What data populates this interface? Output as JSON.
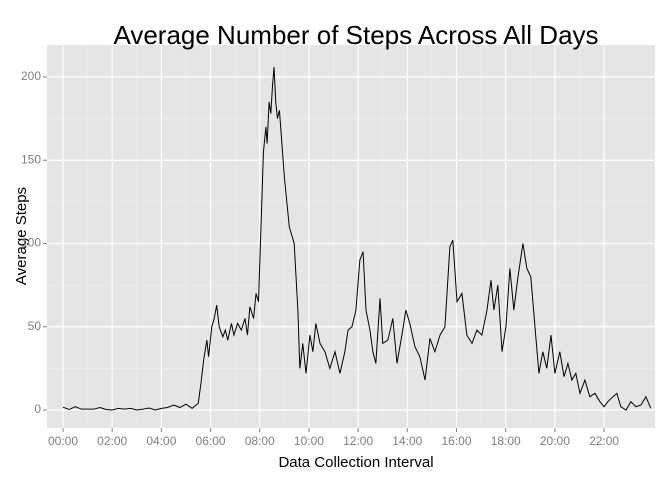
{
  "chart_data": {
    "type": "line",
    "title": "Average Number of Steps Across All Days",
    "x_label": "Data Collection Interval",
    "y_label": "Average Steps",
    "x": [
      0,
      0.25,
      0.5,
      0.75,
      1,
      1.25,
      1.5,
      1.75,
      2,
      2.25,
      2.5,
      2.75,
      3,
      3.25,
      3.5,
      3.75,
      4,
      4.25,
      4.5,
      4.75,
      5,
      5.25,
      5.5,
      5.6,
      5.72,
      5.85,
      5.92,
      6.05,
      6.15,
      6.25,
      6.35,
      6.5,
      6.6,
      6.7,
      6.85,
      6.95,
      7.1,
      7.25,
      7.4,
      7.5,
      7.6,
      7.75,
      7.85,
      7.95,
      8.05,
      8.15,
      8.25,
      8.3,
      8.38,
      8.45,
      8.52,
      8.58,
      8.65,
      8.72,
      8.8,
      9.0,
      9.2,
      9.4,
      9.55,
      9.63,
      9.75,
      9.88,
      10.04,
      10.16,
      10.28,
      10.45,
      10.65,
      10.85,
      11.06,
      11.26,
      11.46,
      11.59,
      11.75,
      11.91,
      12.07,
      12.2,
      12.32,
      12.48,
      12.6,
      12.72,
      12.89,
      13.0,
      13.21,
      13.41,
      13.58,
      13.78,
      13.94,
      14.1,
      14.31,
      14.51,
      14.72,
      14.92,
      15.12,
      15.33,
      15.53,
      15.73,
      15.85,
      16.02,
      16.22,
      16.42,
      16.63,
      16.83,
      17.03,
      17.24,
      17.4,
      17.52,
      17.68,
      17.85,
      18.01,
      18.17,
      18.33,
      18.5,
      18.7,
      18.86,
      19.02,
      19.19,
      19.35,
      19.51,
      19.67,
      19.84,
      20.0,
      20.2,
      20.37,
      20.53,
      20.69,
      20.85,
      21.02,
      21.22,
      21.42,
      21.63,
      21.83,
      22.0,
      22.15,
      22.36,
      22.52,
      22.68,
      22.89,
      23.09,
      23.29,
      23.5,
      23.7,
      23.9
    ],
    "series": [
      {
        "color": "#000000",
        "values": [
          1.7,
          0.3,
          2,
          0.5,
          0.5,
          0.5,
          1.5,
          0.3,
          0,
          1,
          0.5,
          1,
          0,
          0.5,
          1.2,
          0,
          1,
          1.5,
          3,
          1.5,
          3.5,
          1,
          4,
          15,
          30,
          42,
          32,
          50,
          55,
          63,
          50,
          44,
          48,
          42,
          52,
          45,
          52,
          48,
          55,
          45,
          62,
          55,
          70,
          65,
          110,
          155,
          170,
          160,
          185,
          178,
          195,
          206,
          185,
          175,
          180,
          140,
          110,
          100,
          60,
          25,
          40,
          22,
          45,
          35,
          52,
          40,
          35,
          25,
          35,
          22,
          35,
          48,
          50,
          60,
          90,
          95,
          60,
          48,
          35,
          28,
          67,
          40,
          42,
          55,
          28,
          45,
          60,
          52,
          38,
          32,
          18,
          43,
          35,
          45,
          50,
          98,
          102,
          65,
          70,
          45,
          40,
          48,
          45,
          60,
          78,
          60,
          75,
          35,
          50,
          85,
          60,
          80,
          100,
          85,
          80,
          50,
          22,
          35,
          25,
          45,
          22,
          35,
          20,
          28,
          18,
          22,
          10,
          18,
          8,
          10,
          5,
          2,
          5,
          8,
          10,
          2,
          0,
          5,
          2,
          3,
          8,
          1
        ]
      }
    ],
    "xlim": [
      -0.65,
      24.07
    ],
    "xticks": [
      {
        "value": 0,
        "label": "00:00"
      },
      {
        "value": 2,
        "label": "02:00"
      },
      {
        "value": 4,
        "label": "04:00"
      },
      {
        "value": 6,
        "label": "06:00"
      },
      {
        "value": 8,
        "label": "08:00"
      },
      {
        "value": 10,
        "label": "10:00"
      },
      {
        "value": 12,
        "label": "12:00"
      },
      {
        "value": 14,
        "label": "14:00"
      },
      {
        "value": 16,
        "label": "16:00"
      },
      {
        "value": 18,
        "label": "18:00"
      },
      {
        "value": 20,
        "label": "20:00"
      },
      {
        "value": 22,
        "label": "22:00"
      }
    ],
    "ylim": [
      -10.8,
      219.2
    ],
    "yticks": [
      0,
      50,
      100,
      150,
      200
    ],
    "grid": true,
    "background": "#e5e5e5"
  }
}
